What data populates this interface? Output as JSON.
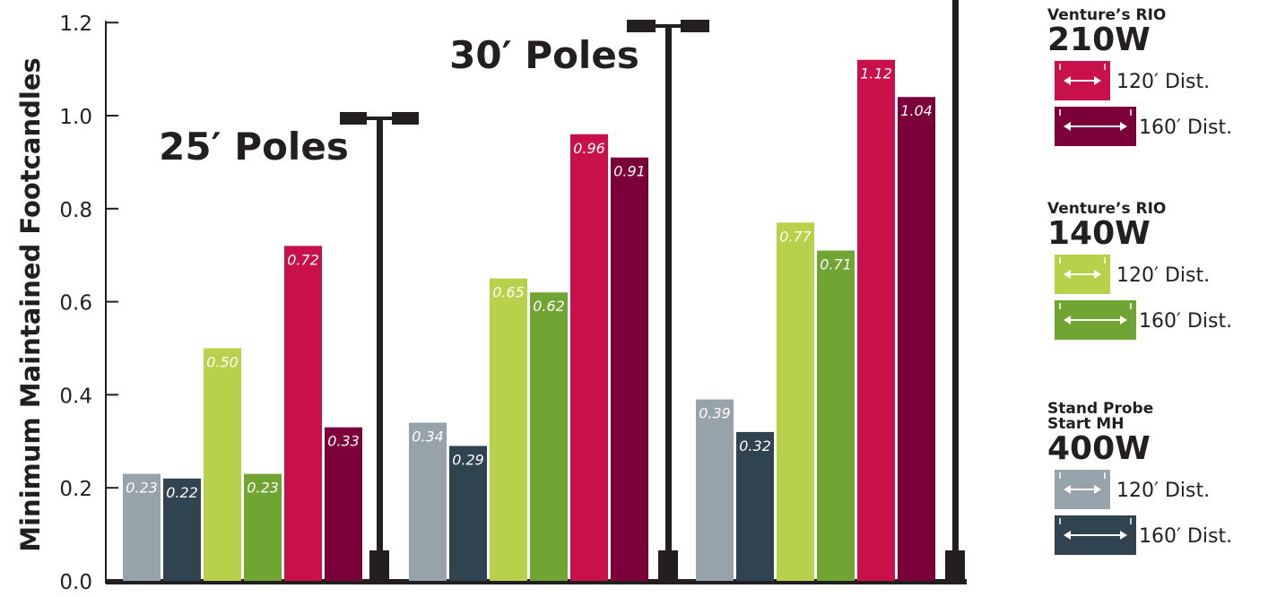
{
  "chart_data": {
    "type": "bar",
    "ylabel": "Minimum Maintained Footcandles",
    "ylim": [
      0,
      1.2
    ],
    "yticks": [
      "0.0",
      "0.2",
      "0.4",
      "0.6",
      "0.8",
      "1.0",
      "1.2"
    ],
    "grid": false,
    "legend_position": "right",
    "groups": [
      {
        "title": "",
        "bars": [
          {
            "series": "Stand Probe Start MH 400W",
            "distance": "120′ Dist.",
            "value": 0.23,
            "label": "0.23"
          },
          {
            "series": "Stand Probe Start MH 400W",
            "distance": "160′ Dist.",
            "value": 0.22,
            "label": "0.22"
          },
          {
            "series": "Venture’s RIO 140W",
            "distance": "120′ Dist.",
            "value": 0.5,
            "label": "0.50"
          },
          {
            "series": "Venture’s RIO 140W",
            "distance": "160′ Dist.",
            "value": 0.23,
            "label": "0.23"
          },
          {
            "series": "Venture’s RIO 210W",
            "distance": "120′ Dist.",
            "value": 0.72,
            "label": "0.72"
          },
          {
            "series": "Venture’s RIO 210W",
            "distance": "160′ Dist.",
            "value": 0.33,
            "label": "0.33"
          }
        ]
      },
      {
        "title": "25′ Poles",
        "bars": [
          {
            "series": "Stand Probe Start MH 400W",
            "distance": "120′ Dist.",
            "value": 0.34,
            "label": "0.34"
          },
          {
            "series": "Stand Probe Start MH 400W",
            "distance": "160′ Dist.",
            "value": 0.29,
            "label": "0.29"
          },
          {
            "series": "Venture’s RIO 140W",
            "distance": "120′ Dist.",
            "value": 0.65,
            "label": "0.65"
          },
          {
            "series": "Venture’s RIO 140W",
            "distance": "160′ Dist.",
            "value": 0.62,
            "label": "0.62"
          },
          {
            "series": "Venture’s RIO 210W",
            "distance": "120′ Dist.",
            "value": 0.96,
            "label": "0.96"
          },
          {
            "series": "Venture’s RIO 210W",
            "distance": "160′ Dist.",
            "value": 0.91,
            "label": "0.91"
          }
        ]
      },
      {
        "title": "30′ Poles",
        "bars": [
          {
            "series": "Stand Probe Start MH 400W",
            "distance": "120′ Dist.",
            "value": 0.39,
            "label": "0.39"
          },
          {
            "series": "Stand Probe Start MH 400W",
            "distance": "160′ Dist.",
            "value": 0.32,
            "label": "0.32"
          },
          {
            "series": "Venture’s RIO 140W",
            "distance": "120′ Dist.",
            "value": 0.77,
            "label": "0.77"
          },
          {
            "series": "Venture’s RIO 140W",
            "distance": "160′ Dist.",
            "value": 0.71,
            "label": "0.71"
          },
          {
            "series": "Venture’s RIO 210W",
            "distance": "120′ Dist.",
            "value": 1.12,
            "label": "1.12"
          },
          {
            "series": "Venture’s RIO 210W",
            "distance": "160′ Dist.",
            "value": 1.04,
            "label": "1.04"
          }
        ]
      }
    ],
    "legend": [
      {
        "title_lines": [
          "Venture’s RIO"
        ],
        "watt": "210W",
        "items": [
          {
            "label": "120′ Dist.",
            "color": "#c8104b"
          },
          {
            "label": "160′ Dist.",
            "color": "#7b0039"
          }
        ]
      },
      {
        "title_lines": [
          "Venture’s RIO"
        ],
        "watt": "140W",
        "items": [
          {
            "label": "120′ Dist.",
            "color": "#b7d24a"
          },
          {
            "label": "160′ Dist.",
            "color": "#71a533"
          }
        ]
      },
      {
        "title_lines": [
          "Stand Probe",
          "Start MH"
        ],
        "watt": "400W",
        "items": [
          {
            "label": "120′ Dist.",
            "color": "#97a3ab"
          },
          {
            "label": "160′ Dist.",
            "color": "#2f4450"
          }
        ]
      }
    ],
    "colors": {
      "axis": "#231f20",
      "pole": "#231f20",
      "Stand Probe Start MH 400W|120′ Dist.": "#97a3ab",
      "Stand Probe Start MH 400W|160′ Dist.": "#2f4450",
      "Venture’s RIO 140W|120′ Dist.": "#b7d24a",
      "Venture’s RIO 140W|160′ Dist.": "#71a533",
      "Venture’s RIO 210W|120′ Dist.": "#c8104b",
      "Venture’s RIO 210W|160′ Dist.": "#7b0039"
    }
  }
}
